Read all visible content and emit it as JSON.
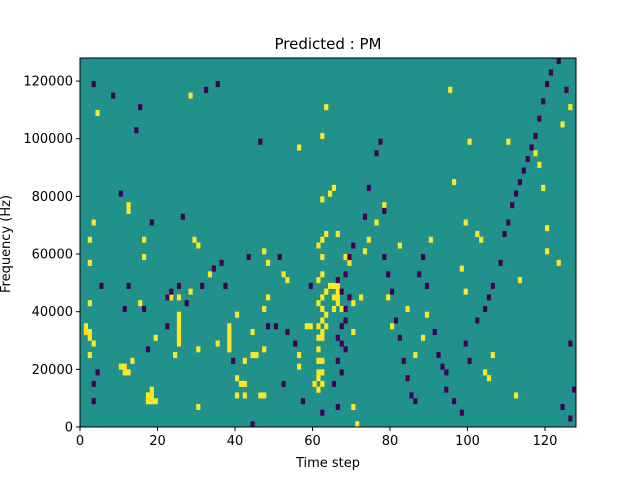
{
  "chart_data": {
    "type": "heatmap",
    "title": "Predicted : PM",
    "xlabel": "Time step",
    "ylabel": "Frequency (Hz)",
    "xlim": [
      0,
      128
    ],
    "ylim": [
      0,
      128000
    ],
    "x_ticks": [
      0,
      20,
      40,
      60,
      80,
      100,
      120
    ],
    "y_ticks": [
      0,
      20000,
      40000,
      60000,
      80000,
      100000,
      120000
    ],
    "x_tick_labels": [
      "0",
      "20",
      "40",
      "60",
      "80",
      "100",
      "120"
    ],
    "y_tick_labels": [
      "0",
      "20000",
      "40000",
      "60000",
      "80000",
      "100000",
      "120000"
    ],
    "cell_width": 1,
    "cell_height": 2000,
    "colors": {
      "background": "#21918c",
      "high": "#fde725",
      "low": "#440154"
    },
    "high_cells": [
      [
        1,
        34000
      ],
      [
        1,
        32000
      ],
      [
        2,
        32000
      ],
      [
        2,
        30000
      ],
      [
        3,
        28000
      ],
      [
        2,
        24000
      ],
      [
        2,
        42000
      ],
      [
        2,
        56000
      ],
      [
        2,
        64000
      ],
      [
        3,
        70000
      ],
      [
        4,
        108000
      ],
      [
        10,
        20000
      ],
      [
        11,
        18000
      ],
      [
        11,
        20000
      ],
      [
        13,
        22000
      ],
      [
        12,
        18000
      ],
      [
        12,
        74000
      ],
      [
        12,
        76000
      ],
      [
        15,
        42000
      ],
      [
        16,
        58000
      ],
      [
        16,
        64000
      ],
      [
        17,
        10000
      ],
      [
        17,
        8000
      ],
      [
        18,
        8000
      ],
      [
        18,
        10000
      ],
      [
        19,
        8000
      ],
      [
        18,
        12000
      ],
      [
        19,
        30000
      ],
      [
        22,
        44000
      ],
      [
        23,
        44000
      ],
      [
        24,
        24000
      ],
      [
        25,
        44000
      ],
      [
        25,
        38000
      ],
      [
        25,
        36000
      ],
      [
        25,
        34000
      ],
      [
        25,
        32000
      ],
      [
        25,
        30000
      ],
      [
        25,
        28000
      ],
      [
        30,
        6000
      ],
      [
        30,
        26000
      ],
      [
        28,
        46000
      ],
      [
        28,
        114000
      ],
      [
        29,
        64000
      ],
      [
        30,
        62000
      ],
      [
        33,
        52000
      ],
      [
        35,
        28000
      ],
      [
        38,
        30000
      ],
      [
        38,
        32000
      ],
      [
        38,
        28000
      ],
      [
        38,
        26000
      ],
      [
        38,
        34000
      ],
      [
        40,
        10000
      ],
      [
        40,
        16000
      ],
      [
        40,
        38000
      ],
      [
        41,
        14000
      ],
      [
        42,
        14000
      ],
      [
        42,
        10000
      ],
      [
        42,
        22000
      ],
      [
        44,
        24000
      ],
      [
        45,
        24000
      ],
      [
        44,
        32000
      ],
      [
        46,
        10000
      ],
      [
        47,
        10000
      ],
      [
        47,
        26000
      ],
      [
        47,
        40000
      ],
      [
        47,
        60000
      ],
      [
        48,
        56000
      ],
      [
        48,
        44000
      ],
      [
        52,
        52000
      ],
      [
        53,
        50000
      ],
      [
        56,
        20000
      ],
      [
        56,
        24000
      ],
      [
        56,
        96000
      ],
      [
        58,
        34000
      ],
      [
        59,
        34000
      ],
      [
        60,
        14000
      ],
      [
        61,
        12000
      ],
      [
        61,
        16000
      ],
      [
        62,
        14000
      ],
      [
        61,
        18000
      ],
      [
        62,
        18000
      ],
      [
        61,
        22000
      ],
      [
        62,
        22000
      ],
      [
        61,
        26000
      ],
      [
        61,
        30000
      ],
      [
        62,
        30000
      ],
      [
        62,
        32000
      ],
      [
        61,
        34000
      ],
      [
        62,
        36000
      ],
      [
        63,
        34000
      ],
      [
        63,
        38000
      ],
      [
        62,
        40000
      ],
      [
        61,
        42000
      ],
      [
        62,
        44000
      ],
      [
        63,
        46000
      ],
      [
        64,
        48000
      ],
      [
        65,
        48000
      ],
      [
        66,
        48000
      ],
      [
        65,
        44000
      ],
      [
        66,
        44000
      ],
      [
        66,
        46000
      ],
      [
        65,
        40000
      ],
      [
        66,
        42000
      ],
      [
        67,
        40000
      ],
      [
        61,
        50000
      ],
      [
        62,
        52000
      ],
      [
        62,
        58000
      ],
      [
        61,
        62000
      ],
      [
        62,
        64000
      ],
      [
        63,
        66000
      ],
      [
        62,
        78000
      ],
      [
        64,
        80000
      ],
      [
        65,
        82000
      ],
      [
        62,
        100000
      ],
      [
        63,
        110000
      ],
      [
        66,
        66000
      ],
      [
        68,
        58000
      ],
      [
        69,
        56000
      ],
      [
        70,
        6000
      ],
      [
        71,
        0
      ],
      [
        70,
        32000
      ],
      [
        70,
        42000
      ],
      [
        72,
        44000
      ],
      [
        73,
        60000
      ],
      [
        74,
        64000
      ],
      [
        76,
        70000
      ],
      [
        78,
        76000
      ],
      [
        79,
        44000
      ],
      [
        80,
        34000
      ],
      [
        82,
        62000
      ],
      [
        84,
        40000
      ],
      [
        86,
        24000
      ],
      [
        88,
        30000
      ],
      [
        89,
        38000
      ],
      [
        90,
        64000
      ],
      [
        95,
        116000
      ],
      [
        96,
        84000
      ],
      [
        98,
        54000
      ],
      [
        99,
        46000
      ],
      [
        100,
        98000
      ],
      [
        99,
        70000
      ],
      [
        102,
        66000
      ],
      [
        103,
        64000
      ],
      [
        104,
        18000
      ],
      [
        105,
        16000
      ],
      [
        106,
        24000
      ],
      [
        110,
        98000
      ],
      [
        112,
        10000
      ],
      [
        113,
        50000
      ],
      [
        117,
        94000
      ],
      [
        118,
        90000
      ],
      [
        119,
        82000
      ],
      [
        120,
        68000
      ],
      [
        120,
        60000
      ],
      [
        123,
        56000
      ],
      [
        124,
        104000
      ],
      [
        126,
        110000
      ]
    ],
    "low_cells": [
      [
        3,
        118000
      ],
      [
        3,
        8000
      ],
      [
        4,
        18000
      ],
      [
        3,
        14000
      ],
      [
        5,
        48000
      ],
      [
        8,
        114000
      ],
      [
        10,
        80000
      ],
      [
        11,
        40000
      ],
      [
        12,
        48000
      ],
      [
        14,
        102000
      ],
      [
        15,
        110000
      ],
      [
        16,
        40000
      ],
      [
        17,
        26000
      ],
      [
        18,
        70000
      ],
      [
        22,
        34000
      ],
      [
        22,
        44000
      ],
      [
        23,
        46000
      ],
      [
        25,
        48000
      ],
      [
        26,
        72000
      ],
      [
        27,
        42000
      ],
      [
        31,
        48000
      ],
      [
        32,
        116000
      ],
      [
        34,
        54000
      ],
      [
        35,
        118000
      ],
      [
        36,
        56000
      ],
      [
        37,
        48000
      ],
      [
        39,
        22000
      ],
      [
        43,
        58000
      ],
      [
        44,
        0
      ],
      [
        46,
        98000
      ],
      [
        48,
        34000
      ],
      [
        50,
        34000
      ],
      [
        51,
        58000
      ],
      [
        52,
        14000
      ],
      [
        53,
        32000
      ],
      [
        55,
        28000
      ],
      [
        57,
        8000
      ],
      [
        59,
        48000
      ],
      [
        62,
        4000
      ],
      [
        66,
        6000
      ],
      [
        65,
        14000
      ],
      [
        67,
        18000
      ],
      [
        66,
        22000
      ],
      [
        67,
        28000
      ],
      [
        66,
        30000
      ],
      [
        67,
        34000
      ],
      [
        68,
        26000
      ],
      [
        68,
        36000
      ],
      [
        68,
        40000
      ],
      [
        69,
        44000
      ],
      [
        67,
        46000
      ],
      [
        66,
        50000
      ],
      [
        68,
        52000
      ],
      [
        69,
        58000
      ],
      [
        70,
        62000
      ],
      [
        73,
        72000
      ],
      [
        74,
        82000
      ],
      [
        76,
        94000
      ],
      [
        77,
        98000
      ],
      [
        78,
        74000
      ],
      [
        78,
        58000
      ],
      [
        79,
        52000
      ],
      [
        80,
        46000
      ],
      [
        81,
        36000
      ],
      [
        82,
        30000
      ],
      [
        83,
        22000
      ],
      [
        84,
        16000
      ],
      [
        85,
        10000
      ],
      [
        86,
        8000
      ],
      [
        87,
        52000
      ],
      [
        88,
        58000
      ],
      [
        89,
        48000
      ],
      [
        91,
        32000
      ],
      [
        92,
        24000
      ],
      [
        93,
        20000
      ],
      [
        94,
        18000
      ],
      [
        94,
        12000
      ],
      [
        96,
        8000
      ],
      [
        98,
        4000
      ],
      [
        99,
        28000
      ],
      [
        100,
        22000
      ],
      [
        102,
        36000
      ],
      [
        104,
        40000
      ],
      [
        105,
        44000
      ],
      [
        106,
        48000
      ],
      [
        108,
        56000
      ],
      [
        109,
        66000
      ],
      [
        110,
        70000
      ],
      [
        111,
        76000
      ],
      [
        112,
        80000
      ],
      [
        113,
        84000
      ],
      [
        114,
        88000
      ],
      [
        115,
        92000
      ],
      [
        116,
        96000
      ],
      [
        117,
        100000
      ],
      [
        118,
        106000
      ],
      [
        119,
        112000
      ],
      [
        120,
        118000
      ],
      [
        121,
        122000
      ],
      [
        123,
        126000
      ],
      [
        125,
        116000
      ],
      [
        126,
        28000
      ],
      [
        127,
        12000
      ],
      [
        124,
        6000
      ],
      [
        126,
        2000
      ]
    ]
  }
}
